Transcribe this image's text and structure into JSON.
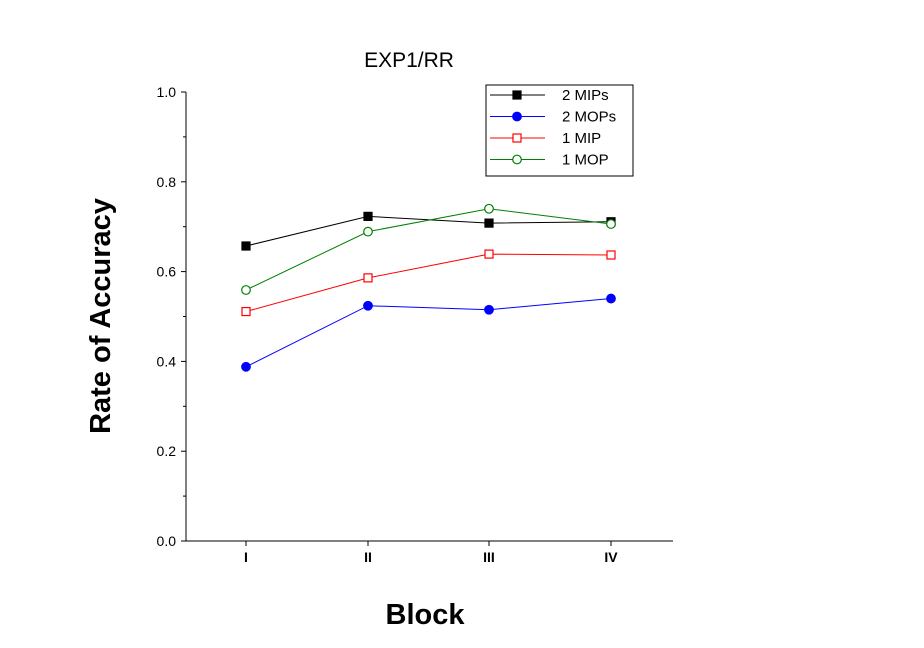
{
  "chart_data": {
    "type": "line",
    "title": "EXP1/RR",
    "xlabel": "Block",
    "ylabel": "Rate of Accuracy",
    "categories": [
      "I",
      "II",
      "III",
      "IV"
    ],
    "ylim": [
      0,
      1.0
    ],
    "yticks": [
      "0.0",
      "0.2",
      "0.4",
      "0.6",
      "0.8",
      "1.0"
    ],
    "grid": false,
    "legend_position": "top-right",
    "series": [
      {
        "name": "2 MIPs",
        "values": [
          0.657,
          0.723,
          0.708,
          0.711
        ],
        "color": "#000000",
        "marker": "square-filled"
      },
      {
        "name": "2 MOPs",
        "values": [
          0.388,
          0.524,
          0.515,
          0.54
        ],
        "color": "#0000ff",
        "marker": "circle-filled"
      },
      {
        "name": "1 MIP",
        "values": [
          0.511,
          0.586,
          0.639,
          0.637
        ],
        "color": "#ff0000",
        "marker": "square-open"
      },
      {
        "name": "1 MOP",
        "values": [
          0.559,
          0.689,
          0.74,
          0.706
        ],
        "color": "#008000",
        "marker": "circle-open"
      }
    ]
  }
}
